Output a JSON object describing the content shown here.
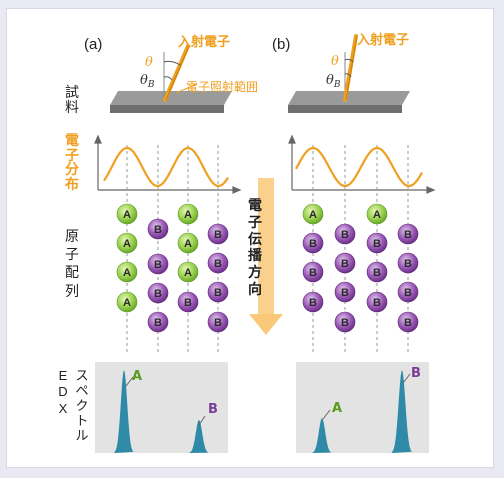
{
  "panels": {
    "a": {
      "label": "(a)",
      "incident": "入射電子",
      "theta": "θ",
      "theta_b": "θB",
      "irradiation": "電子照射範囲"
    },
    "b": {
      "label": "(b)",
      "incident": "入射電子",
      "theta": "θ",
      "theta_b": "θB"
    }
  },
  "side_labels": {
    "sample": "試料",
    "electron_dist": "電子分布",
    "atom_arrangement": "原子配列",
    "edx": "EDX",
    "spectrum": "スペクトル"
  },
  "propagation_label": "電子伝播方向",
  "atoms": {
    "A": "A",
    "B": "B"
  },
  "spectra": {
    "a": {
      "peak_A_label": "A",
      "peak_B_label": "B",
      "peak_A_height": 0.95,
      "peak_B_height": 0.38
    },
    "b": {
      "peak_A_label": "A",
      "peak_B_label": "B",
      "peak_A_height": 0.4,
      "peak_B_height": 0.95
    }
  },
  "colors": {
    "orange": "#f0a020",
    "green": "#8fd24a",
    "purple": "#8e4ba8",
    "teal": "#2e8aa6",
    "sample": "#8c8c8c",
    "arrow": "#f9d18c"
  }
}
